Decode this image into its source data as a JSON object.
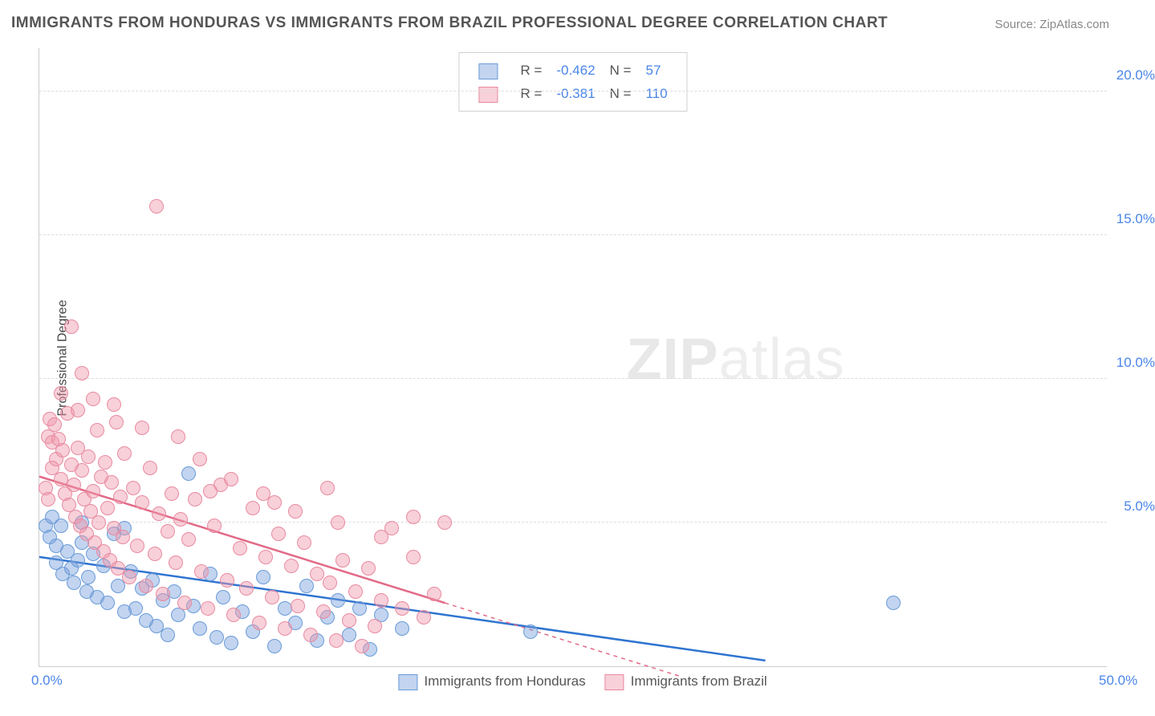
{
  "title": "IMMIGRANTS FROM HONDURAS VS IMMIGRANTS FROM BRAZIL PROFESSIONAL DEGREE CORRELATION CHART",
  "source": "Source: ZipAtlas.com",
  "ylabel": "Professional Degree",
  "watermark_bold": "ZIP",
  "watermark_rest": "atlas",
  "xlim": [
    0,
    50
  ],
  "ylim": [
    0,
    21.5
  ],
  "yticks": [
    {
      "v": 5.0,
      "label": "5.0%"
    },
    {
      "v": 10.0,
      "label": "10.0%"
    },
    {
      "v": 15.0,
      "label": "15.0%"
    },
    {
      "v": 20.0,
      "label": "20.0%"
    }
  ],
  "xticks": [
    {
      "v": 0.0,
      "label": "0.0%"
    },
    {
      "v": 50.0,
      "label": "50.0%"
    }
  ],
  "series": [
    {
      "name": "Immigrants from Honduras",
      "fill": "rgba(120,160,220,0.45)",
      "stroke": "#6a9bd8",
      "trend_color": "#2f74d0",
      "R": "-0.462",
      "N": "57",
      "trend": {
        "x1": 0,
        "y1": 3.8,
        "x2": 34,
        "y2": 0.2,
        "dash_to_x": 34
      },
      "marker_r": 9,
      "points": [
        [
          0.3,
          4.9
        ],
        [
          0.5,
          4.5
        ],
        [
          0.6,
          5.2
        ],
        [
          0.8,
          4.2
        ],
        [
          0.8,
          3.6
        ],
        [
          1.0,
          4.9
        ],
        [
          1.1,
          3.2
        ],
        [
          1.3,
          4.0
        ],
        [
          1.5,
          3.4
        ],
        [
          1.6,
          2.9
        ],
        [
          1.8,
          3.7
        ],
        [
          2.0,
          4.3
        ],
        [
          2.2,
          2.6
        ],
        [
          2.3,
          3.1
        ],
        [
          2.5,
          3.9
        ],
        [
          2.7,
          2.4
        ],
        [
          3.0,
          3.5
        ],
        [
          3.2,
          2.2
        ],
        [
          3.5,
          4.6
        ],
        [
          3.7,
          2.8
        ],
        [
          4.0,
          1.9
        ],
        [
          4.3,
          3.3
        ],
        [
          4.5,
          2.0
        ],
        [
          4.8,
          2.7
        ],
        [
          5.0,
          1.6
        ],
        [
          5.3,
          3.0
        ],
        [
          5.5,
          1.4
        ],
        [
          5.8,
          2.3
        ],
        [
          6.0,
          1.1
        ],
        [
          6.3,
          2.6
        ],
        [
          6.5,
          1.8
        ],
        [
          7.0,
          6.7
        ],
        [
          7.2,
          2.1
        ],
        [
          7.5,
          1.3
        ],
        [
          8.0,
          3.2
        ],
        [
          8.3,
          1.0
        ],
        [
          8.6,
          2.4
        ],
        [
          9.0,
          0.8
        ],
        [
          9.5,
          1.9
        ],
        [
          10.0,
          1.2
        ],
        [
          10.5,
          3.1
        ],
        [
          11.0,
          0.7
        ],
        [
          11.5,
          2.0
        ],
        [
          12.0,
          1.5
        ],
        [
          12.5,
          2.8
        ],
        [
          13.0,
          0.9
        ],
        [
          13.5,
          1.7
        ],
        [
          14.0,
          2.3
        ],
        [
          14.5,
          1.1
        ],
        [
          15.0,
          2.0
        ],
        [
          15.5,
          0.6
        ],
        [
          16.0,
          1.8
        ],
        [
          17.0,
          1.3
        ],
        [
          23.0,
          1.2
        ],
        [
          40.0,
          2.2
        ],
        [
          4.0,
          4.8
        ],
        [
          2.0,
          5.0
        ]
      ]
    },
    {
      "name": "Immigrants from Brazil",
      "fill": "rgba(240,150,170,0.45)",
      "stroke": "#e88aa0",
      "trend_color": "#e26a87",
      "R": "-0.381",
      "N": "110",
      "trend": {
        "x1": 0,
        "y1": 6.6,
        "x2": 19,
        "y2": 2.2,
        "dash_to_x": 30
      },
      "marker_r": 9,
      "points": [
        [
          0.4,
          8.0
        ],
        [
          0.5,
          8.6
        ],
        [
          0.6,
          7.8
        ],
        [
          0.7,
          8.4
        ],
        [
          0.8,
          7.2
        ],
        [
          0.9,
          7.9
        ],
        [
          1.0,
          6.5
        ],
        [
          1.1,
          7.5
        ],
        [
          1.2,
          6.0
        ],
        [
          1.3,
          8.8
        ],
        [
          1.4,
          5.6
        ],
        [
          1.5,
          7.0
        ],
        [
          1.6,
          6.3
        ],
        [
          1.7,
          5.2
        ],
        [
          1.8,
          7.6
        ],
        [
          1.9,
          4.9
        ],
        [
          2.0,
          6.8
        ],
        [
          2.1,
          5.8
        ],
        [
          2.2,
          4.6
        ],
        [
          2.3,
          7.3
        ],
        [
          2.4,
          5.4
        ],
        [
          2.5,
          6.1
        ],
        [
          2.6,
          4.3
        ],
        [
          2.7,
          8.2
        ],
        [
          2.8,
          5.0
        ],
        [
          2.9,
          6.6
        ],
        [
          3.0,
          4.0
        ],
        [
          3.1,
          7.1
        ],
        [
          3.2,
          5.5
        ],
        [
          3.3,
          3.7
        ],
        [
          3.4,
          6.4
        ],
        [
          3.5,
          4.8
        ],
        [
          3.6,
          8.5
        ],
        [
          3.7,
          3.4
        ],
        [
          3.8,
          5.9
        ],
        [
          3.9,
          4.5
        ],
        [
          4.0,
          7.4
        ],
        [
          4.2,
          3.1
        ],
        [
          4.4,
          6.2
        ],
        [
          4.6,
          4.2
        ],
        [
          4.8,
          5.7
        ],
        [
          5.0,
          2.8
        ],
        [
          5.2,
          6.9
        ],
        [
          5.4,
          3.9
        ],
        [
          5.6,
          5.3
        ],
        [
          5.8,
          2.5
        ],
        [
          6.0,
          4.7
        ],
        [
          6.2,
          6.0
        ],
        [
          6.4,
          3.6
        ],
        [
          6.6,
          5.1
        ],
        [
          6.8,
          2.2
        ],
        [
          7.0,
          4.4
        ],
        [
          7.3,
          5.8
        ],
        [
          7.6,
          3.3
        ],
        [
          7.9,
          2.0
        ],
        [
          8.2,
          4.9
        ],
        [
          8.5,
          6.3
        ],
        [
          8.8,
          3.0
        ],
        [
          9.1,
          1.8
        ],
        [
          9.4,
          4.1
        ],
        [
          9.7,
          2.7
        ],
        [
          10.0,
          5.5
        ],
        [
          10.3,
          1.5
        ],
        [
          10.6,
          3.8
        ],
        [
          10.9,
          2.4
        ],
        [
          11.2,
          4.6
        ],
        [
          11.5,
          1.3
        ],
        [
          11.8,
          3.5
        ],
        [
          12.1,
          2.1
        ],
        [
          12.4,
          4.3
        ],
        [
          12.7,
          1.1
        ],
        [
          13.0,
          3.2
        ],
        [
          13.3,
          1.9
        ],
        [
          13.6,
          2.9
        ],
        [
          13.9,
          0.9
        ],
        [
          14.2,
          3.7
        ],
        [
          14.5,
          1.6
        ],
        [
          14.8,
          2.6
        ],
        [
          15.1,
          0.7
        ],
        [
          15.4,
          3.4
        ],
        [
          15.7,
          1.4
        ],
        [
          16.0,
          2.3
        ],
        [
          16.5,
          4.8
        ],
        [
          17.0,
          2.0
        ],
        [
          17.5,
          5.2
        ],
        [
          18.0,
          1.7
        ],
        [
          18.5,
          2.5
        ],
        [
          19.0,
          5.0
        ],
        [
          2.0,
          10.2
        ],
        [
          3.5,
          9.1
        ],
        [
          4.8,
          8.3
        ],
        [
          1.5,
          11.8
        ],
        [
          5.5,
          16.0
        ],
        [
          6.5,
          8.0
        ],
        [
          7.5,
          7.2
        ],
        [
          0.3,
          6.2
        ],
        [
          0.4,
          5.8
        ],
        [
          0.6,
          6.9
        ],
        [
          1.0,
          9.5
        ],
        [
          1.8,
          8.9
        ],
        [
          2.5,
          9.3
        ],
        [
          8.0,
          6.1
        ],
        [
          9.0,
          6.5
        ],
        [
          10.5,
          6.0
        ],
        [
          11.0,
          5.7
        ],
        [
          12.0,
          5.4
        ],
        [
          13.5,
          6.2
        ],
        [
          14.0,
          5.0
        ],
        [
          16.0,
          4.5
        ],
        [
          17.5,
          3.8
        ]
      ]
    }
  ],
  "legend_top": {
    "r_label": "R =",
    "n_label": "N ="
  },
  "legend_bot_labels": [
    "Immigrants from Honduras",
    "Immigrants from Brazil"
  ]
}
